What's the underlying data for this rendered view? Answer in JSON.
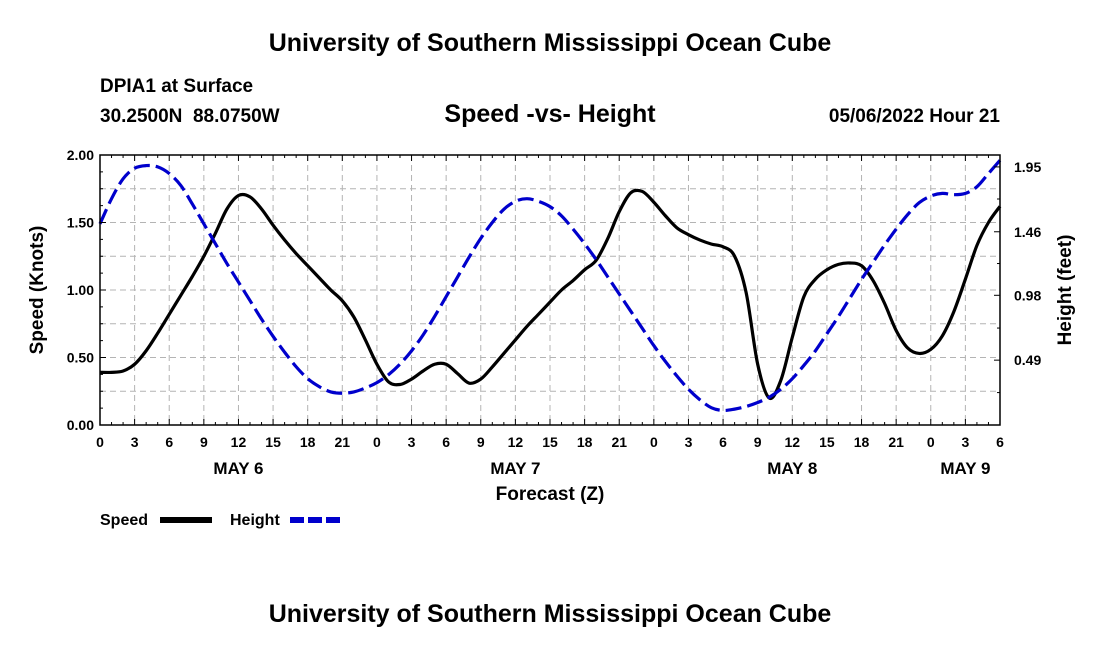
{
  "header": {
    "title": "University of Southern Mississippi Ocean Cube",
    "station": "DPIA1 at Surface",
    "coords": "30.2500N  88.0750W",
    "subtitle": "Speed -vs- Height",
    "datetime": "05/06/2022 Hour 21"
  },
  "footer": {
    "title": "University of Southern Mississippi Ocean Cube"
  },
  "colors": {
    "speed": "#000000",
    "height": "#0000cc",
    "grid": "#b4b4b4"
  },
  "legend": {
    "speed_label": "Speed",
    "height_label": "Height"
  },
  "chart_data": {
    "type": "line",
    "title": "Speed -vs- Height",
    "xlabel": "Forecast (Z)",
    "ylabel": "Speed (Knots)",
    "y2label": "Height (feet)",
    "xlim": [
      0,
      78
    ],
    "ylim": [
      0,
      2.0
    ],
    "y2lim": [
      0,
      2.04
    ],
    "x_tick_values": [
      0,
      3,
      6,
      9,
      12,
      15,
      18,
      21,
      24,
      27,
      30,
      33,
      36,
      39,
      42,
      45,
      48,
      51,
      54,
      57,
      60,
      63,
      66,
      69,
      72,
      75,
      78
    ],
    "x_tick_labels": [
      "0",
      "3",
      "6",
      "9",
      "12",
      "15",
      "18",
      "21",
      "0",
      "3",
      "6",
      "9",
      "12",
      "15",
      "18",
      "21",
      "0",
      "3",
      "6",
      "9",
      "12",
      "15",
      "18",
      "21",
      "0",
      "3",
      "6"
    ],
    "date_labels": [
      {
        "x": 12,
        "label": "MAY 6"
      },
      {
        "x": 36,
        "label": "MAY 7"
      },
      {
        "x": 60,
        "label": "MAY 8"
      },
      {
        "x": 75,
        "label": "MAY 9"
      }
    ],
    "y_ticks": [
      {
        "value": 0,
        "label": "0.00"
      },
      {
        "value": 0.5,
        "label": "0.50"
      },
      {
        "value": 1.0,
        "label": "1.00"
      },
      {
        "value": 1.5,
        "label": "1.50"
      },
      {
        "value": 2.0,
        "label": "2.00"
      }
    ],
    "y2_ticks": [
      {
        "value": 0.49,
        "label": "0.49"
      },
      {
        "value": 0.98,
        "label": "0.98"
      },
      {
        "value": 1.46,
        "label": "1.46"
      },
      {
        "value": 1.95,
        "label": "1.95"
      }
    ],
    "grid": true,
    "series": [
      {
        "name": "Speed",
        "axis": "left",
        "style": "solid",
        "x": [
          0,
          1,
          2,
          3,
          4,
          5,
          6,
          7,
          8,
          9,
          10,
          11,
          12,
          13,
          14,
          15,
          16,
          17,
          18,
          19,
          20,
          21,
          22,
          23,
          24,
          25,
          26,
          27,
          28,
          29,
          30,
          31,
          32,
          33,
          34,
          35,
          36,
          37,
          38,
          39,
          40,
          41,
          42,
          43,
          44,
          45,
          46,
          47,
          48,
          49,
          50,
          51,
          52,
          53,
          54,
          55,
          56,
          57,
          58,
          59,
          60,
          61,
          62,
          63,
          64,
          65,
          66,
          67,
          68,
          69,
          70,
          71,
          72,
          73,
          74,
          75,
          76,
          77,
          78
        ],
        "values": [
          0.39,
          0.39,
          0.4,
          0.45,
          0.55,
          0.68,
          0.82,
          0.96,
          1.1,
          1.25,
          1.42,
          1.6,
          1.7,
          1.69,
          1.6,
          1.48,
          1.37,
          1.27,
          1.18,
          1.09,
          1.0,
          0.92,
          0.8,
          0.63,
          0.45,
          0.32,
          0.3,
          0.34,
          0.4,
          0.45,
          0.45,
          0.38,
          0.31,
          0.34,
          0.43,
          0.53,
          0.63,
          0.73,
          0.82,
          0.91,
          1.0,
          1.07,
          1.15,
          1.22,
          1.38,
          1.58,
          1.72,
          1.73,
          1.65,
          1.55,
          1.46,
          1.41,
          1.37,
          1.34,
          1.32,
          1.25,
          0.98,
          0.45,
          0.2,
          0.33,
          0.65,
          0.95,
          1.08,
          1.15,
          1.19,
          1.2,
          1.18,
          1.07,
          0.9,
          0.7,
          0.57,
          0.53,
          0.56,
          0.66,
          0.84,
          1.08,
          1.33,
          1.5,
          1.62
        ]
      },
      {
        "name": "Height",
        "axis": "right",
        "style": "dashed",
        "x": [
          0,
          1,
          2,
          3,
          4,
          5,
          6,
          7,
          8,
          9,
          10,
          11,
          12,
          13,
          14,
          15,
          16,
          17,
          18,
          19,
          20,
          21,
          22,
          23,
          24,
          25,
          26,
          27,
          28,
          29,
          30,
          31,
          32,
          33,
          34,
          35,
          36,
          37,
          38,
          39,
          40,
          41,
          42,
          43,
          44,
          45,
          46,
          47,
          48,
          49,
          50,
          51,
          52,
          53,
          54,
          55,
          56,
          57,
          58,
          59,
          60,
          61,
          62,
          63,
          64,
          65,
          66,
          67,
          68,
          69,
          70,
          71,
          72,
          73,
          74,
          75,
          76,
          77,
          78
        ],
        "values": [
          1.52,
          1.71,
          1.86,
          1.94,
          1.96,
          1.95,
          1.9,
          1.81,
          1.67,
          1.52,
          1.37,
          1.22,
          1.08,
          0.94,
          0.8,
          0.67,
          0.55,
          0.44,
          0.35,
          0.29,
          0.25,
          0.24,
          0.25,
          0.28,
          0.32,
          0.38,
          0.46,
          0.56,
          0.68,
          0.82,
          0.97,
          1.12,
          1.27,
          1.41,
          1.53,
          1.63,
          1.69,
          1.71,
          1.69,
          1.65,
          1.58,
          1.48,
          1.37,
          1.25,
          1.12,
          0.99,
          0.86,
          0.73,
          0.6,
          0.48,
          0.37,
          0.27,
          0.19,
          0.13,
          0.11,
          0.12,
          0.14,
          0.17,
          0.21,
          0.27,
          0.35,
          0.45,
          0.56,
          0.69,
          0.82,
          0.96,
          1.1,
          1.23,
          1.36,
          1.48,
          1.59,
          1.68,
          1.73,
          1.75,
          1.74,
          1.75,
          1.8,
          1.9,
          2.0
        ]
      }
    ]
  }
}
